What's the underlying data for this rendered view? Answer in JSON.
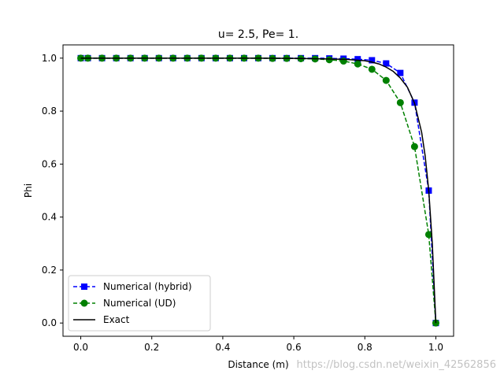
{
  "chart_data": {
    "type": "line",
    "title": "u= 2.5,  Pe= 1.",
    "xlabel": "Distance (m)",
    "ylabel": "Phi",
    "xlim": [
      -0.05,
      1.05
    ],
    "ylim": [
      -0.05,
      1.05
    ],
    "xticks": [
      "0.0",
      "0.2",
      "0.4",
      "0.6",
      "0.8",
      "1.0"
    ],
    "yticks": [
      "0.0",
      "0.2",
      "0.4",
      "0.6",
      "0.8",
      "1.0"
    ],
    "grid": false,
    "legend_position": "lower-left",
    "series": [
      {
        "name": "Numerical (hybrid)",
        "color": "#0000ff",
        "linestyle": "dashed",
        "marker": "square",
        "x": [
          0.0,
          0.02,
          0.06,
          0.1,
          0.14,
          0.18,
          0.22,
          0.26,
          0.3,
          0.34,
          0.38,
          0.42,
          0.46,
          0.5,
          0.54,
          0.58,
          0.62,
          0.66,
          0.7,
          0.74,
          0.78,
          0.82,
          0.86,
          0.9,
          0.94,
          0.98,
          1.0
        ],
        "y": [
          1.0,
          1.0,
          1.0,
          1.0,
          1.0,
          1.0,
          1.0,
          1.0,
          1.0,
          1.0,
          1.0,
          1.0,
          1.0,
          1.0,
          1.0,
          1.0,
          1.0,
          1.0,
          0.999,
          0.998,
          0.996,
          0.992,
          0.98,
          0.944,
          0.832,
          0.5,
          0.0
        ]
      },
      {
        "name": "Numerical (UD)",
        "color": "#008000",
        "linestyle": "dashed",
        "marker": "circle",
        "x": [
          0.0,
          0.02,
          0.06,
          0.1,
          0.14,
          0.18,
          0.22,
          0.26,
          0.3,
          0.34,
          0.38,
          0.42,
          0.46,
          0.5,
          0.54,
          0.58,
          0.62,
          0.66,
          0.7,
          0.74,
          0.78,
          0.82,
          0.86,
          0.9,
          0.94,
          0.98,
          1.0
        ],
        "y": [
          1.0,
          1.0,
          1.0,
          1.0,
          1.0,
          1.0,
          1.0,
          1.0,
          1.0,
          1.0,
          1.0,
          1.0,
          1.0,
          1.0,
          0.999,
          0.999,
          0.998,
          0.997,
          0.994,
          0.989,
          0.978,
          0.958,
          0.916,
          0.832,
          0.666,
          0.334,
          0.0
        ]
      },
      {
        "name": "Exact",
        "color": "#000000",
        "linestyle": "solid",
        "marker": "none",
        "x": [
          0.0,
          0.1,
          0.2,
          0.3,
          0.4,
          0.5,
          0.6,
          0.65,
          0.7,
          0.75,
          0.8,
          0.82,
          0.84,
          0.86,
          0.88,
          0.9,
          0.92,
          0.94,
          0.96,
          0.97,
          0.98,
          0.99,
          1.0
        ],
        "y": [
          1.0,
          1.0,
          1.0,
          1.0,
          1.0,
          1.0,
          0.999,
          0.998,
          0.997,
          0.995,
          0.99,
          0.985,
          0.978,
          0.966,
          0.95,
          0.925,
          0.89,
          0.83,
          0.72,
          0.63,
          0.5,
          0.3,
          0.0
        ]
      }
    ]
  },
  "watermark": "https://blog.csdn.net/weixin_42562856"
}
